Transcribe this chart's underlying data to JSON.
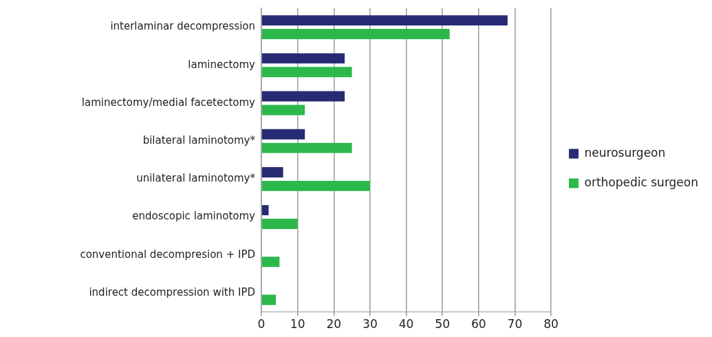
{
  "chart_data": {
    "type": "bar",
    "orientation": "horizontal",
    "categories": [
      "interlaminar decompression",
      "laminectomy",
      "laminectomy/medial facetectomy",
      "bilateral laminotomy*",
      "unilateral laminotomy*",
      "endoscopic laminotomy",
      "conventional decompresion + IPD",
      "indirect decompression with IPD"
    ],
    "series": [
      {
        "name": "neurosurgeon",
        "color": "#262b73",
        "values": [
          68,
          23,
          23,
          12,
          6,
          2,
          0,
          0
        ]
      },
      {
        "name": "orthopedic surgeon",
        "color": "#2db84b",
        "values": [
          52,
          25,
          12,
          25,
          30,
          10,
          5,
          4
        ]
      }
    ],
    "xlim": [
      0,
      80
    ],
    "xticks": [
      0,
      10,
      20,
      30,
      40,
      50,
      60,
      70,
      80
    ],
    "grid": "x",
    "legend": "right"
  }
}
